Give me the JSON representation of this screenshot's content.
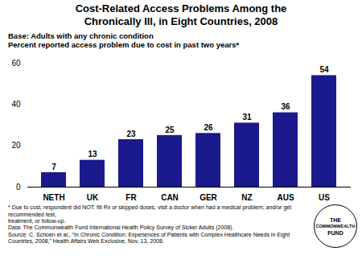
{
  "chart_data": {
    "type": "bar",
    "title": "Cost-Related Access Problems Among the\nChronically Ill, in Eight Countries, 2008",
    "subtitle": "Base: Adults with any chronic condition\nPercent reported access problem due to cost in past two years*",
    "categories": [
      "NETH",
      "UK",
      "FR",
      "CAN",
      "GER",
      "NZ",
      "AUS",
      "US"
    ],
    "values": [
      7,
      13,
      23,
      25,
      26,
      31,
      36,
      54
    ],
    "color": "#1a1a8c",
    "ylim": [
      0,
      60
    ],
    "yticks": [
      0,
      20,
      40,
      60
    ],
    "grid": false,
    "data_labels": true,
    "caption": [
      "* Due to cost, respondent did NOT: fill Rx or skipped doses, visit a doctor when had a medical problem, and/or get recommended test,",
      "treatment, or follow-up.",
      "Data: The Commonwealth Fund International Health Policy Survey of Sicker Adults (2008).",
      "Source: C. Schoen et al., “In Chronic Condition: Experiences of Patients with Complex Healthcare Needs in Eight",
      "Countries, 2008,” Health Affairs Web Exclusive, Nov. 13, 2008."
    ],
    "annotations": [
      "THE",
      "COMMONWEALTH",
      "FUND"
    ]
  }
}
